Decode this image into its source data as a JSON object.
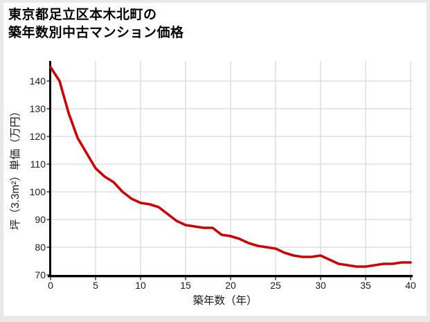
{
  "page": {
    "title_line1": "東京都足立区本木北町の",
    "title_line2": "築年数別中古マンション価格"
  },
  "colors": {
    "line": "#cc0000",
    "grid": "#d9d9d9",
    "axis": "#000000",
    "tick_text": "#1a1a1a",
    "frame_border": "#e9e9e9",
    "background": "#ffffff"
  },
  "chart_data": {
    "type": "line",
    "title": "東京都足立区本木北町の 築年数別中古マンション価格",
    "xlabel": "築年数（年）",
    "ylabel": "坪（3.3m²）単価（万円）",
    "xlim": [
      0,
      40
    ],
    "ylim": [
      70,
      147
    ],
    "xticks": [
      0,
      5,
      10,
      15,
      20,
      25,
      30,
      35,
      40
    ],
    "yticks": [
      70,
      80,
      90,
      100,
      110,
      120,
      130,
      140
    ],
    "grid": true,
    "legend": false,
    "x": [
      0,
      1,
      2,
      3,
      4,
      5,
      6,
      7,
      8,
      9,
      10,
      11,
      12,
      13,
      14,
      15,
      16,
      17,
      18,
      19,
      20,
      21,
      22,
      23,
      24,
      25,
      26,
      27,
      28,
      29,
      30,
      31,
      32,
      33,
      34,
      35,
      36,
      37,
      38,
      39,
      40
    ],
    "values": [
      145,
      140,
      128.5,
      119.5,
      114,
      108.5,
      105.5,
      103.5,
      100,
      97.5,
      96,
      95.5,
      94.5,
      92,
      89.5,
      88,
      87.5,
      87,
      87,
      84.5,
      84,
      83,
      81.5,
      80.5,
      80,
      79.5,
      78,
      77,
      76.5,
      76.5,
      77,
      75.5,
      74,
      73.5,
      73,
      73,
      73.5,
      74,
      74,
      74.5,
      74.5
    ]
  }
}
